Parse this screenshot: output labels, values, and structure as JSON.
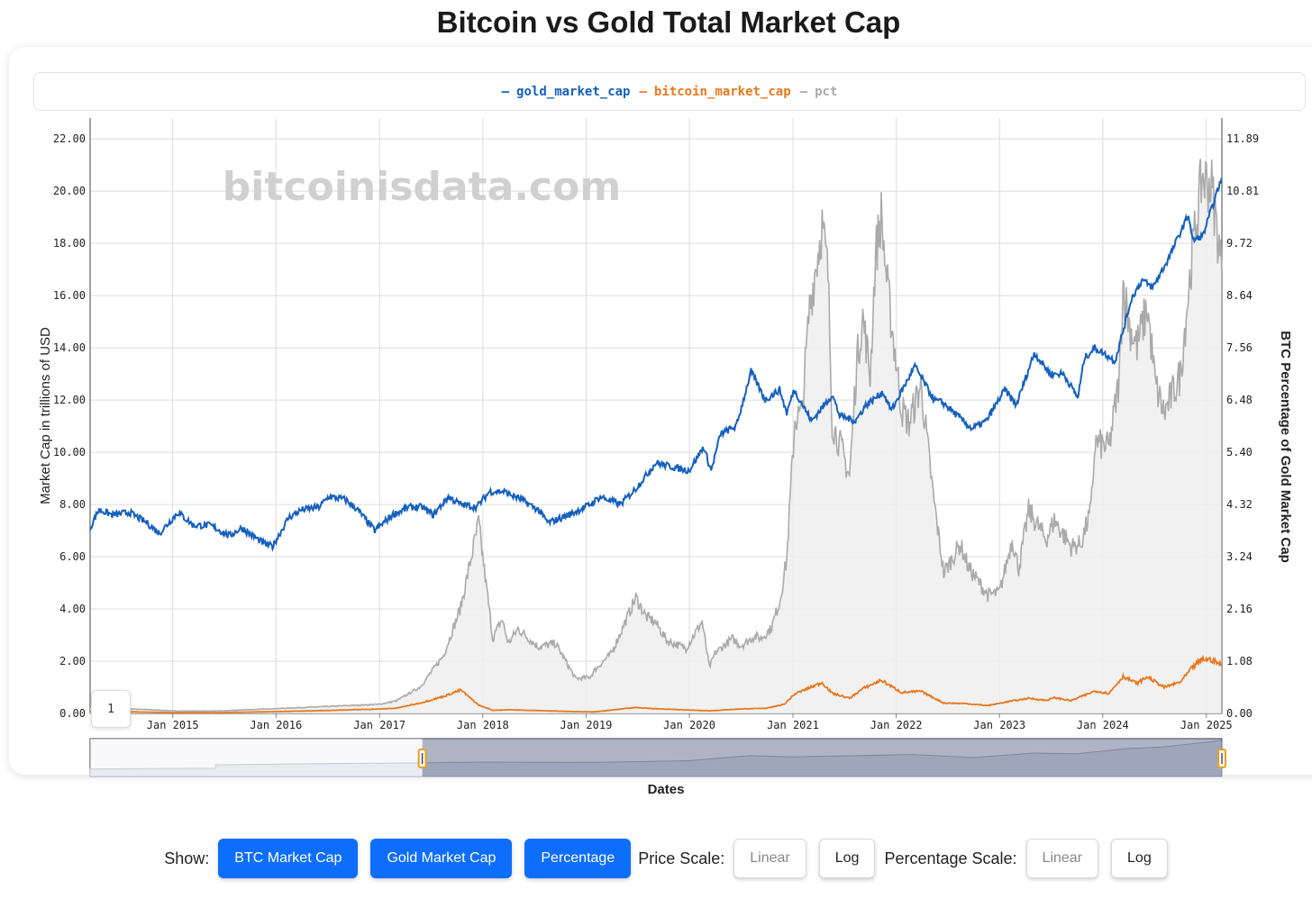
{
  "page": {
    "title": "Bitcoin vs Gold Total Market Cap"
  },
  "chart_data": {
    "type": "line",
    "watermark": "bitcoinisdata.com",
    "title": "",
    "xlabel": "Dates",
    "ylabel": "Market Cap in trillions of USD",
    "y2label": "BTC Percentage of Gold Market Cap",
    "x_tick_labels": [
      "Jan 2015",
      "Jan 2016",
      "Jan 2017",
      "Jan 2018",
      "Jan 2019",
      "Jan 2020",
      "Jan 2021",
      "Jan 2022",
      "Jan 2023",
      "Jan 2024",
      "Jan 2025"
    ],
    "y_tick_labels": [
      "0.00",
      "2.00",
      "4.00",
      "6.00",
      "8.00",
      "10.00",
      "12.00",
      "14.00",
      "16.00",
      "18.00",
      "20.00",
      "22.00"
    ],
    "y2_tick_labels": [
      "0.00",
      "1.08",
      "2.16",
      "3.24",
      "4.32",
      "5.40",
      "6.48",
      "7.56",
      "8.64",
      "9.72",
      "10.81",
      "11.89"
    ],
    "ylim": [
      0,
      22.8
    ],
    "y2lim": [
      0,
      12.32
    ],
    "xlim": [
      "2014-03-15",
      "2025-02-25"
    ],
    "grid": true,
    "legend_position": "top-center",
    "series": [
      {
        "name": "gold_market_cap",
        "axis": "left",
        "color": "#1560bd",
        "points": [
          [
            "2014-03-15",
            7.1
          ],
          [
            "2014-04-15",
            7.8
          ],
          [
            "2014-06-01",
            7.6
          ],
          [
            "2014-08-01",
            7.7
          ],
          [
            "2014-10-01",
            7.3
          ],
          [
            "2014-11-15",
            6.9
          ],
          [
            "2015-01-20",
            7.7
          ],
          [
            "2015-03-15",
            7.2
          ],
          [
            "2015-05-15",
            7.2
          ],
          [
            "2015-07-20",
            6.8
          ],
          [
            "2015-09-01",
            7.1
          ],
          [
            "2015-11-20",
            6.5
          ],
          [
            "2015-12-20",
            6.4
          ],
          [
            "2016-02-15",
            7.5
          ],
          [
            "2016-04-01",
            7.8
          ],
          [
            "2016-06-01",
            7.9
          ],
          [
            "2016-07-05",
            8.3
          ],
          [
            "2016-09-01",
            8.2
          ],
          [
            "2016-10-15",
            7.8
          ],
          [
            "2016-12-15",
            7.0
          ],
          [
            "2017-02-15",
            7.6
          ],
          [
            "2017-04-15",
            7.9
          ],
          [
            "2017-06-01",
            7.9
          ],
          [
            "2017-07-10",
            7.6
          ],
          [
            "2017-09-01",
            8.3
          ],
          [
            "2017-10-15",
            8.0
          ],
          [
            "2017-12-10",
            7.9
          ],
          [
            "2018-01-25",
            8.5
          ],
          [
            "2018-03-15",
            8.5
          ],
          [
            "2018-05-15",
            8.2
          ],
          [
            "2018-07-15",
            7.8
          ],
          [
            "2018-08-20",
            7.3
          ],
          [
            "2018-11-01",
            7.6
          ],
          [
            "2019-01-15",
            8.0
          ],
          [
            "2019-02-20",
            8.3
          ],
          [
            "2019-05-01",
            8.0
          ],
          [
            "2019-06-25",
            8.6
          ],
          [
            "2019-09-05",
            9.6
          ],
          [
            "2019-11-15",
            9.4
          ],
          [
            "2019-12-31",
            9.3
          ],
          [
            "2020-02-20",
            10.2
          ],
          [
            "2020-03-18",
            9.3
          ],
          [
            "2020-04-20",
            10.7
          ],
          [
            "2020-06-15",
            11.0
          ],
          [
            "2020-08-06",
            13.1
          ],
          [
            "2020-09-25",
            12.0
          ],
          [
            "2020-11-15",
            12.4
          ],
          [
            "2020-12-10",
            11.5
          ],
          [
            "2021-01-05",
            12.4
          ],
          [
            "2021-03-08",
            11.2
          ],
          [
            "2021-05-20",
            12.2
          ],
          [
            "2021-06-15",
            11.4
          ],
          [
            "2021-08-10",
            11.2
          ],
          [
            "2021-09-15",
            11.8
          ],
          [
            "2021-11-15",
            12.3
          ],
          [
            "2021-12-15",
            11.6
          ],
          [
            "2022-03-08",
            13.3
          ],
          [
            "2022-05-15",
            12.0
          ],
          [
            "2022-06-15",
            11.9
          ],
          [
            "2022-09-25",
            10.9
          ],
          [
            "2022-11-15",
            11.2
          ],
          [
            "2023-01-20",
            12.4
          ],
          [
            "2023-03-01",
            11.8
          ],
          [
            "2023-05-04",
            13.8
          ],
          [
            "2023-06-30",
            13.0
          ],
          [
            "2023-08-15",
            13.0
          ],
          [
            "2023-10-05",
            12.1
          ],
          [
            "2023-10-28",
            13.6
          ],
          [
            "2023-12-04",
            14.0
          ],
          [
            "2024-02-14",
            13.5
          ],
          [
            "2024-04-12",
            15.9
          ],
          [
            "2024-05-20",
            16.6
          ],
          [
            "2024-06-25",
            16.3
          ],
          [
            "2024-08-15",
            17.3
          ],
          [
            "2024-10-30",
            19.1
          ],
          [
            "2024-11-14",
            18.1
          ],
          [
            "2024-12-20",
            18.3
          ],
          [
            "2025-02-24",
            20.5
          ]
        ]
      },
      {
        "name": "bitcoin_market_cap",
        "axis": "left",
        "color": "#e8781e",
        "points": [
          [
            "2014-03-15",
            0.08
          ],
          [
            "2014-06-01",
            0.08
          ],
          [
            "2014-10-01",
            0.05
          ],
          [
            "2015-01-15",
            0.03
          ],
          [
            "2015-06-01",
            0.03
          ],
          [
            "2016-01-01",
            0.07
          ],
          [
            "2016-06-15",
            0.11
          ],
          [
            "2017-01-01",
            0.17
          ],
          [
            "2017-03-01",
            0.2
          ],
          [
            "2017-05-25",
            0.4
          ],
          [
            "2017-08-15",
            0.65
          ],
          [
            "2017-10-15",
            0.9
          ],
          [
            "2017-12-17",
            0.32
          ],
          [
            "2018-02-05",
            0.12
          ],
          [
            "2018-04-01",
            0.14
          ],
          [
            "2018-07-15",
            0.11
          ],
          [
            "2018-11-25",
            0.07
          ],
          [
            "2019-02-01",
            0.06
          ],
          [
            "2019-06-26",
            0.23
          ],
          [
            "2019-09-01",
            0.18
          ],
          [
            "2020-03-12",
            0.1
          ],
          [
            "2020-07-01",
            0.17
          ],
          [
            "2020-10-01",
            0.2
          ],
          [
            "2020-12-01",
            0.35
          ],
          [
            "2021-01-08",
            0.75
          ],
          [
            "2021-04-14",
            1.18
          ],
          [
            "2021-05-20",
            0.77
          ],
          [
            "2021-07-20",
            0.58
          ],
          [
            "2021-09-05",
            0.95
          ],
          [
            "2021-11-09",
            1.27
          ],
          [
            "2022-01-20",
            0.8
          ],
          [
            "2022-03-29",
            0.85
          ],
          [
            "2022-06-18",
            0.4
          ],
          [
            "2022-09-01",
            0.38
          ],
          [
            "2022-11-21",
            0.3
          ],
          [
            "2023-01-25",
            0.44
          ],
          [
            "2023-04-14",
            0.58
          ],
          [
            "2023-06-15",
            0.5
          ],
          [
            "2023-07-14",
            0.6
          ],
          [
            "2023-09-11",
            0.49
          ],
          [
            "2023-12-05",
            0.86
          ],
          [
            "2024-01-23",
            0.77
          ],
          [
            "2024-03-13",
            1.42
          ],
          [
            "2024-05-01",
            1.15
          ],
          [
            "2024-06-07",
            1.4
          ],
          [
            "2024-08-05",
            1.0
          ],
          [
            "2024-10-01",
            1.2
          ],
          [
            "2024-11-12",
            1.75
          ],
          [
            "2024-12-17",
            2.08
          ],
          [
            "2025-01-20",
            2.05
          ],
          [
            "2025-02-24",
            1.86
          ]
        ]
      },
      {
        "name": "pct",
        "axis": "right",
        "color": "#aaaaaa",
        "points": [
          [
            "2014-03-15",
            0.12
          ],
          [
            "2014-06-01",
            0.11
          ],
          [
            "2014-10-01",
            0.08
          ],
          [
            "2015-01-15",
            0.05
          ],
          [
            "2015-06-01",
            0.05
          ],
          [
            "2016-01-01",
            0.1
          ],
          [
            "2016-06-15",
            0.14
          ],
          [
            "2017-01-01",
            0.19
          ],
          [
            "2017-03-01",
            0.26
          ],
          [
            "2017-05-25",
            0.55
          ],
          [
            "2017-08-15",
            1.2
          ],
          [
            "2017-10-15",
            2.2
          ],
          [
            "2017-12-17",
            3.95
          ],
          [
            "2018-02-05",
            1.55
          ],
          [
            "2018-03-10",
            1.95
          ],
          [
            "2018-04-01",
            1.45
          ],
          [
            "2018-05-05",
            1.75
          ],
          [
            "2018-07-15",
            1.38
          ],
          [
            "2018-09-15",
            1.45
          ],
          [
            "2018-11-25",
            0.72
          ],
          [
            "2019-01-15",
            0.75
          ],
          [
            "2019-02-01",
            0.9
          ],
          [
            "2019-04-01",
            1.25
          ],
          [
            "2019-06-26",
            2.4
          ],
          [
            "2019-08-01",
            2.0
          ],
          [
            "2019-09-01",
            1.9
          ],
          [
            "2019-10-15",
            1.5
          ],
          [
            "2019-12-20",
            1.35
          ],
          [
            "2020-02-15",
            1.9
          ],
          [
            "2020-03-12",
            0.95
          ],
          [
            "2020-04-01",
            1.25
          ],
          [
            "2020-06-01",
            1.55
          ],
          [
            "2020-07-01",
            1.4
          ],
          [
            "2020-08-20",
            1.6
          ],
          [
            "2020-09-10",
            1.55
          ],
          [
            "2020-10-15",
            1.75
          ],
          [
            "2020-11-15",
            2.3
          ],
          [
            "2020-12-10",
            3.2
          ],
          [
            "2021-01-08",
            6.1
          ],
          [
            "2021-02-01",
            6.2
          ],
          [
            "2021-03-01",
            8.4
          ],
          [
            "2021-04-14",
            10.1
          ],
          [
            "2021-05-05",
            9.1
          ],
          [
            "2021-05-20",
            6.0
          ],
          [
            "2021-06-20",
            5.5
          ],
          [
            "2021-07-20",
            4.9
          ],
          [
            "2021-08-15",
            7.3
          ],
          [
            "2021-09-05",
            8.2
          ],
          [
            "2021-10-01",
            7.0
          ],
          [
            "2021-10-20",
            9.5
          ],
          [
            "2021-11-09",
            10.3
          ],
          [
            "2021-12-01",
            8.8
          ],
          [
            "2022-01-20",
            6.3
          ],
          [
            "2022-02-15",
            6.0
          ],
          [
            "2022-03-29",
            6.8
          ],
          [
            "2022-05-12",
            4.5
          ],
          [
            "2022-06-18",
            2.9
          ],
          [
            "2022-08-15",
            3.5
          ],
          [
            "2022-09-15",
            3.0
          ],
          [
            "2022-11-21",
            2.45
          ],
          [
            "2023-01-01",
            2.5
          ],
          [
            "2023-02-15",
            3.6
          ],
          [
            "2023-03-10",
            3.0
          ],
          [
            "2023-04-14",
            4.2
          ],
          [
            "2023-06-15",
            3.6
          ],
          [
            "2023-07-14",
            4.0
          ],
          [
            "2023-09-11",
            3.45
          ],
          [
            "2023-10-15",
            3.5
          ],
          [
            "2023-11-20",
            4.2
          ],
          [
            "2023-12-05",
            5.6
          ],
          [
            "2024-01-23",
            5.5
          ],
          [
            "2024-02-28",
            6.9
          ],
          [
            "2024-03-13",
            8.9
          ],
          [
            "2024-04-05",
            8.0
          ],
          [
            "2024-05-01",
            7.6
          ],
          [
            "2024-06-07",
            8.4
          ],
          [
            "2024-07-05",
            6.8
          ],
          [
            "2024-08-05",
            6.2
          ],
          [
            "2024-10-01",
            7.0
          ],
          [
            "2024-11-12",
            9.5
          ],
          [
            "2024-12-17",
            11.1
          ],
          [
            "2025-01-20",
            10.9
          ],
          [
            "2025-02-10",
            9.9
          ],
          [
            "2025-02-24",
            9.2
          ]
        ]
      }
    ],
    "navigator": {
      "selected_range": [
        "2017-06-01",
        "2025-02-25"
      ],
      "series": [
        [
          "2014-03-15",
          0.2
        ],
        [
          "2015-06-01",
          0.22
        ],
        [
          "2015-06-02",
          0.31
        ],
        [
          "2016-06-01",
          0.34
        ],
        [
          "2017-06-01",
          0.36
        ],
        [
          "2018-01-01",
          0.38
        ],
        [
          "2019-01-01",
          0.37
        ],
        [
          "2020-01-01",
          0.42
        ],
        [
          "2020-08-01",
          0.55
        ],
        [
          "2021-01-01",
          0.52
        ],
        [
          "2022-03-01",
          0.58
        ],
        [
          "2022-10-01",
          0.5
        ],
        [
          "2023-05-01",
          0.62
        ],
        [
          "2023-10-01",
          0.6
        ],
        [
          "2024-04-01",
          0.74
        ],
        [
          "2024-08-01",
          0.78
        ],
        [
          "2024-12-01",
          0.88
        ],
        [
          "2025-02-24",
          0.95
        ]
      ]
    },
    "page_indicator": "1"
  },
  "legend": {
    "items": [
      {
        "label": "gold_market_cap",
        "color": "#1560bd",
        "marker": "—"
      },
      {
        "label": "bitcoin_market_cap",
        "color": "#e8781e",
        "marker": "—"
      },
      {
        "label": "pct",
        "color": "#aaaaaa",
        "marker": "—"
      }
    ]
  },
  "controls": {
    "show_label": "Show:",
    "show_buttons": [
      "BTC Market Cap",
      "Gold Market Cap",
      "Percentage"
    ],
    "price_scale_label": "Price Scale:",
    "price_scale_options": [
      "Linear",
      "Log"
    ],
    "price_scale_selected": "Log",
    "percentage_scale_label": "Percentage Scale:",
    "percentage_scale_options": [
      "Linear",
      "Log"
    ],
    "percentage_scale_selected": "Log"
  },
  "colors": {
    "accent": "#0d6efd",
    "grid": "#dddddd",
    "navigator_fill": "#8a93ad"
  }
}
